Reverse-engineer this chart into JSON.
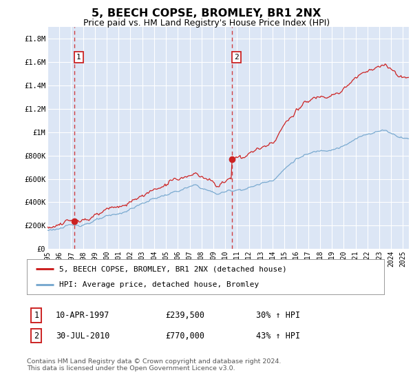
{
  "title": "5, BEECH COPSE, BROMLEY, BR1 2NX",
  "subtitle": "Price paid vs. HM Land Registry's House Price Index (HPI)",
  "title_fontsize": 11.5,
  "subtitle_fontsize": 9,
  "bg_color": "#dce6f5",
  "grid_color": "#ffffff",
  "ylim": [
    0,
    1900000
  ],
  "xlim_start": 1995.0,
  "xlim_end": 2025.5,
  "sale1_date": 1997.27,
  "sale1_price": 239500,
  "sale2_date": 2010.58,
  "sale2_price": 770000,
  "red_line_color": "#cc2222",
  "blue_line_color": "#7aaad0",
  "legend_label_red": "5, BEECH COPSE, BROMLEY, BR1 2NX (detached house)",
  "legend_label_blue": "HPI: Average price, detached house, Bromley",
  "table_row1_label": "1",
  "table_row1_date": "10-APR-1997",
  "table_row1_price": "£239,500",
  "table_row1_hpi": "30% ↑ HPI",
  "table_row2_label": "2",
  "table_row2_date": "30-JUL-2010",
  "table_row2_price": "£770,000",
  "table_row2_hpi": "43% ↑ HPI",
  "footer_text": "Contains HM Land Registry data © Crown copyright and database right 2024.\nThis data is licensed under the Open Government Licence v3.0.",
  "ytick_labels": [
    "£0",
    "£200K",
    "£400K",
    "£600K",
    "£800K",
    "£1M",
    "£1.2M",
    "£1.4M",
    "£1.6M",
    "£1.8M"
  ],
  "ytick_values": [
    0,
    200000,
    400000,
    600000,
    800000,
    1000000,
    1200000,
    1400000,
    1600000,
    1800000
  ],
  "xtick_years": [
    1995,
    1996,
    1997,
    1998,
    1999,
    2000,
    2001,
    2002,
    2003,
    2004,
    2005,
    2006,
    2007,
    2008,
    2009,
    2010,
    2011,
    2012,
    2013,
    2014,
    2015,
    2016,
    2017,
    2018,
    2019,
    2020,
    2021,
    2022,
    2023,
    2024,
    2025
  ]
}
